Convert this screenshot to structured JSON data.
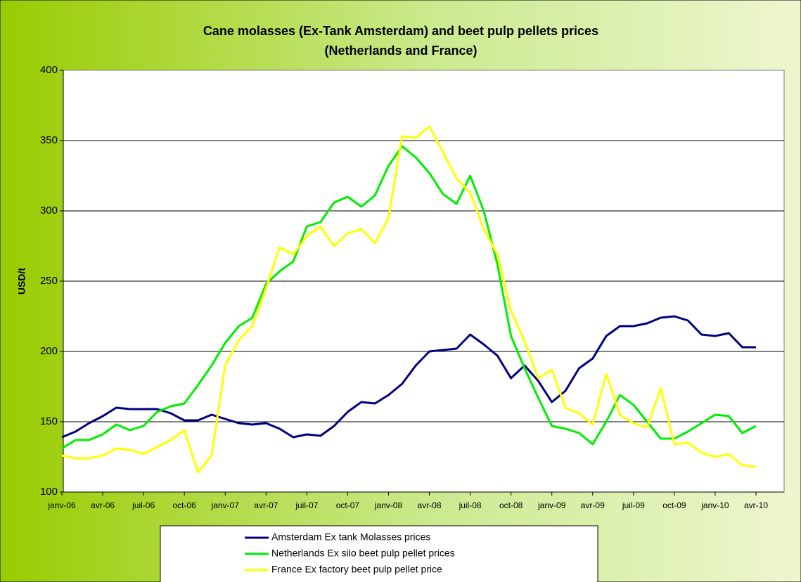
{
  "chart_data": {
    "type": "line",
    "title": [
      "Cane molasses (Ex-Tank Amsterdam) and beet pulp pellets prices",
      "(Netherlands and France)"
    ],
    "y_label": "USD/t",
    "categories": [
      "janv-06",
      null,
      null,
      "avr-06",
      null,
      null,
      "juil-06",
      null,
      null,
      "oct-06",
      null,
      null,
      "janv-07",
      null,
      null,
      "avr-07",
      null,
      null,
      "juil-07",
      null,
      null,
      "oct-07",
      null,
      null,
      "janv-08",
      null,
      null,
      "avr-08",
      null,
      null,
      "juil-08",
      null,
      null,
      "oct-08",
      null,
      null,
      "janv-09",
      null,
      null,
      "avr-09",
      null,
      null,
      "juil-09",
      null,
      null,
      "oct-09",
      null,
      null,
      "janv-10",
      null,
      null,
      "avr-10"
    ],
    "series": [
      {
        "name": "Amsterdam Ex tank Molasses prices",
        "color": "#000080",
        "values": [
          139,
          143,
          149,
          154,
          160,
          159,
          159,
          159,
          156,
          151,
          151,
          155,
          152,
          149,
          148,
          149,
          145,
          139,
          141,
          140,
          147,
          157,
          164,
          163,
          169,
          177,
          190,
          200,
          201,
          202,
          212,
          205,
          197,
          181,
          190,
          179,
          164,
          172,
          188,
          195,
          211,
          218,
          218,
          220,
          224,
          225,
          222,
          212,
          211,
          213,
          203,
          203
        ]
      },
      {
        "name": "Netherlands Ex silo beet pulp pellet  prices",
        "color": "#00ee00",
        "values": [
          131,
          137,
          137,
          141,
          148,
          144,
          147,
          157,
          161,
          163,
          176,
          190,
          206,
          218,
          224,
          248,
          257,
          264,
          289,
          292,
          306,
          310,
          303,
          311,
          332,
          346,
          338,
          327,
          312,
          305,
          325,
          300,
          262,
          211,
          188,
          167,
          147,
          145,
          142,
          134,
          150,
          169,
          162,
          150,
          138,
          138,
          143,
          149,
          155,
          154,
          142,
          147
        ]
      },
      {
        "name": "France Ex factory beet pulp pellet price",
        "color": "#ffff00",
        "values": [
          126,
          124,
          124,
          126,
          131,
          130,
          127,
          132,
          137,
          144,
          114,
          126,
          190,
          208,
          218,
          245,
          274,
          269,
          282,
          289,
          275,
          284,
          287,
          277,
          295,
          353,
          352,
          360,
          342,
          323,
          313,
          287,
          269,
          229,
          207,
          181,
          187,
          160,
          156,
          148,
          184,
          155,
          149,
          146,
          174,
          134,
          135,
          128,
          125,
          127,
          119,
          118
        ]
      }
    ],
    "ylim": [
      100,
      400
    ],
    "yticks": [
      100,
      150,
      200,
      250,
      300,
      350,
      400
    ],
    "grid": true,
    "legend": "bottom"
  }
}
